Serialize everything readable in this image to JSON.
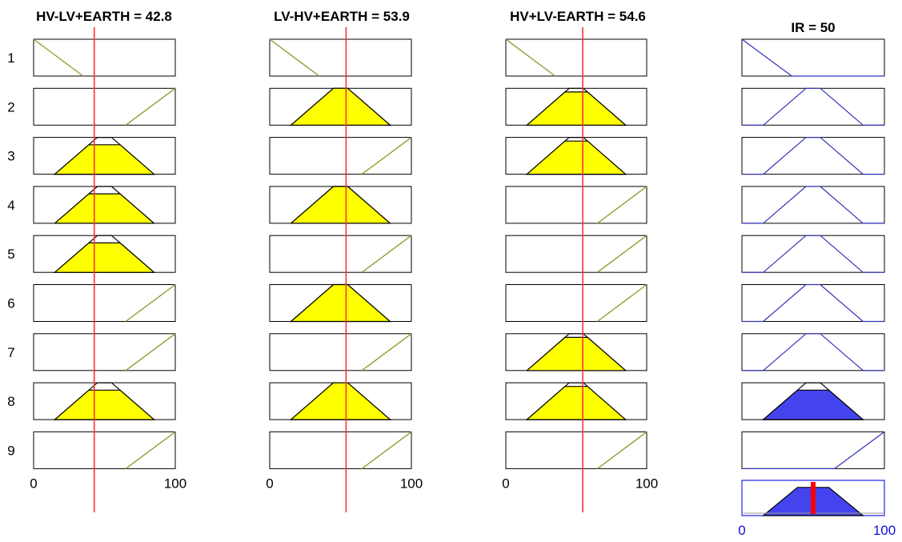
{
  "colors": {
    "input_fill": "#ffff00",
    "input_line": "#999933",
    "output_line": "#3333bb",
    "output_fill": "#4444ee",
    "indicator": "#ff3333",
    "indicator_output": "#ff0000",
    "frame": "#000000",
    "output_frame": "#2222ee",
    "output_axis_text": "#1111dd"
  },
  "rule_numbers": [
    "1",
    "2",
    "3",
    "4",
    "5",
    "6",
    "7",
    "8",
    "9"
  ],
  "inputs": [
    {
      "title": "HV-LV+EARTH = 42.8",
      "value": 42.8,
      "range": [
        0,
        100
      ],
      "axis_min_label": "0",
      "axis_max_label": "100",
      "rules": [
        {
          "mf": "low",
          "activated": false
        },
        {
          "mf": "high",
          "activated": false
        },
        {
          "mf": "medium",
          "activated": true,
          "firing": 0.8
        },
        {
          "mf": "medium",
          "activated": true,
          "firing": 0.8
        },
        {
          "mf": "medium",
          "activated": true,
          "firing": 0.8
        },
        {
          "mf": "high",
          "activated": false
        },
        {
          "mf": "high",
          "activated": false
        },
        {
          "mf": "medium",
          "activated": true,
          "firing": 0.8
        },
        {
          "mf": "high",
          "activated": false
        }
      ]
    },
    {
      "title": "LV-HV+EARTH = 53.9",
      "value": 53.9,
      "range": [
        0,
        100
      ],
      "axis_min_label": "0",
      "axis_max_label": "100",
      "rules": [
        {
          "mf": "low",
          "activated": false
        },
        {
          "mf": "medium",
          "activated": true,
          "firing": 1.0
        },
        {
          "mf": "high",
          "activated": false
        },
        {
          "mf": "medium",
          "activated": true,
          "firing": 1.0
        },
        {
          "mf": "high",
          "activated": false
        },
        {
          "mf": "medium",
          "activated": true,
          "firing": 1.0
        },
        {
          "mf": "high",
          "activated": false
        },
        {
          "mf": "medium",
          "activated": true,
          "firing": 1.0
        },
        {
          "mf": "high",
          "activated": false
        }
      ]
    },
    {
      "title": "HV+LV-EARTH = 54.6",
      "value": 54.6,
      "range": [
        0,
        100
      ],
      "axis_min_label": "0",
      "axis_max_label": "100",
      "rules": [
        {
          "mf": "low",
          "activated": false
        },
        {
          "mf": "medium",
          "activated": true,
          "firing": 0.9
        },
        {
          "mf": "medium",
          "activated": true,
          "firing": 0.9
        },
        {
          "mf": "high",
          "activated": false
        },
        {
          "mf": "high",
          "activated": false
        },
        {
          "mf": "high",
          "activated": false
        },
        {
          "mf": "medium",
          "activated": true,
          "firing": 0.9
        },
        {
          "mf": "medium",
          "activated": true,
          "firing": 0.9
        },
        {
          "mf": "high",
          "activated": false
        }
      ]
    }
  ],
  "output": {
    "title": "IR = 50",
    "value": 50,
    "range": [
      0,
      100
    ],
    "axis_min_label": "0",
    "axis_max_label": "100",
    "rules": [
      {
        "mf": "low",
        "firing": 0
      },
      {
        "mf": "medium",
        "firing": 0
      },
      {
        "mf": "medium",
        "firing": 0
      },
      {
        "mf": "medium",
        "firing": 0
      },
      {
        "mf": "medium",
        "firing": 0
      },
      {
        "mf": "medium",
        "firing": 0
      },
      {
        "mf": "medium",
        "firing": 0
      },
      {
        "mf": "medium",
        "firing": 0.8
      },
      {
        "mf": "high",
        "firing": 0
      }
    ],
    "aggregate_firing": 0.8
  },
  "membership_functions": {
    "low": [
      0,
      0,
      35
    ],
    "medium": [
      15,
      45,
      55,
      85
    ],
    "high": [
      65,
      100,
      100
    ]
  }
}
